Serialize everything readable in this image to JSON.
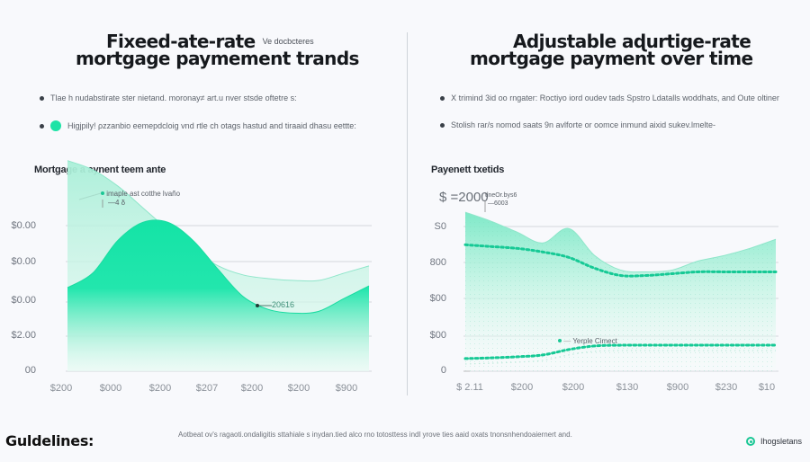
{
  "left": {
    "title_line1": "Fixeed-ate-rate",
    "title_note": "Ve docbcteres",
    "title_line2": "mortgage paymement  trands",
    "bullets": [
      "Tlae h nudabstirate ster nietand. moronay≠ art.u nver stsde oftetre s:",
      "Higjpily! ρzzanbio eemepdcloig vnd rtle ch otags hastud and tiraaid dhasu eettte:"
    ],
    "subhead": "Mortgage a aynent teem ante"
  },
  "right": {
    "title_line1": "Adjustable aɖurtige-rate",
    "title_line2": "mortgage payment  over  time",
    "bullets": [
      "Ⅹ trimind 3id oo rngater: Roctiyo iord oudev tads Spstro Ldatalls woddhats, and Oute oltiner",
      "Stolish rar/s nomod saats 9n avlforte or oomce inmund aixid sukev.lmelte-"
    ],
    "subhead": "Payenett txetids"
  },
  "footer": {
    "guidelines_label": "Guldelines:",
    "text": "Aotbeat ov's ragaoti.ondaligitis sttahiale s inydan.tied alco rno totosttess indl yrove ties aaid oxats tnonsnhendoaiernert and.",
    "legend_label": "Ihogsletans",
    "legend_icon": "target-circle-icon"
  },
  "colors": {
    "accent": "#1de3a6",
    "accent_light": "#b8f2df",
    "accent_dark": "#14c48f",
    "grid": "#d6d9de",
    "background": "#f8f9fc"
  },
  "chart_data": [
    {
      "type": "area",
      "title": "Fixeed-ate-rate mortgage paymement trands",
      "subtitle": "Mortgage a aynent teem ante",
      "y_tick_labels": [
        "$0.00",
        "$0.00",
        "$0.00",
        "$2.00",
        "00"
      ],
      "x_tick_labels": [
        "$200",
        "$000",
        "$200",
        "$207",
        "$200",
        "$200",
        "$900"
      ],
      "ylim": [
        0,
        5
      ],
      "grid": true,
      "series": [
        {
          "name": "background-trend",
          "style": "light-area",
          "x": [
            0,
            0.5,
            1,
            1.5,
            2,
            2.5,
            3,
            3.5,
            4,
            4.5,
            5,
            5.5,
            6
          ],
          "values": [
            5.8,
            5.55,
            5.1,
            4.5,
            3.9,
            3.35,
            2.9,
            2.65,
            2.55,
            2.5,
            2.5,
            2.7,
            2.9
          ]
        },
        {
          "name": "payment",
          "style": "bright-area",
          "x": [
            0,
            0.5,
            1,
            1.5,
            2,
            2.5,
            3,
            3.5,
            4,
            4.5,
            5,
            5.5,
            6
          ],
          "values": [
            2.3,
            2.7,
            3.6,
            4.1,
            4.1,
            3.6,
            2.8,
            2.05,
            1.7,
            1.6,
            1.65,
            2.0,
            2.35
          ]
        }
      ],
      "annotations": [
        {
          "label": "imaple ast cotthe lvaño",
          "sublabel": "—4 δ",
          "at": "top-left"
        },
        {
          "label": "20616",
          "at": "trough"
        }
      ]
    },
    {
      "type": "area",
      "title": "Adjustable aɖurtige-rate mortgage payment over time",
      "subtitle": "Payenett txetids",
      "y_tick_labels": [
        "S0",
        "800",
        "$00",
        "$00",
        "0"
      ],
      "x_tick_labels": [
        "$ 2.11",
        "$200",
        "$200",
        "$130",
        "$900",
        "$230",
        "$10"
      ],
      "ylim": [
        0,
        5
      ],
      "grid": true,
      "series": [
        {
          "name": "adjustable-area",
          "style": "light-area",
          "x": [
            0,
            0.5,
            1,
            1.5,
            2,
            2.5,
            3,
            3.5,
            4,
            4.5,
            5,
            5.5,
            6
          ],
          "values": [
            4.4,
            4.15,
            3.85,
            3.55,
            3.95,
            3.2,
            2.8,
            2.75,
            2.8,
            3.05,
            3.2,
            3.4,
            3.65
          ]
        },
        {
          "name": "rate-dotted",
          "style": "dotted-line",
          "x": [
            0,
            0.5,
            1,
            1.5,
            2,
            2.5,
            3,
            3.5,
            4,
            4.5,
            5,
            5.5,
            6
          ],
          "values": [
            3.5,
            3.45,
            3.4,
            3.3,
            3.15,
            2.85,
            2.65,
            2.65,
            2.7,
            2.75,
            2.75,
            2.75,
            2.75
          ]
        },
        {
          "name": "yerple-cimect",
          "style": "dotted-line",
          "x": [
            0,
            0.5,
            1,
            1.5,
            2,
            2.5,
            3,
            3.5,
            4,
            4.5,
            5,
            5.5,
            6
          ],
          "values": [
            0.35,
            0.37,
            0.4,
            0.45,
            0.6,
            0.7,
            0.72,
            0.72,
            0.72,
            0.72,
            0.72,
            0.72,
            0.72
          ]
        }
      ],
      "annotations": [
        {
          "label": "$ =2000",
          "sublabel": "tlneOr.bys6",
          "detail": "—6003",
          "at": "top-left"
        },
        {
          "label": "Yerple Cimect",
          "at": "lower-series"
        }
      ]
    }
  ]
}
